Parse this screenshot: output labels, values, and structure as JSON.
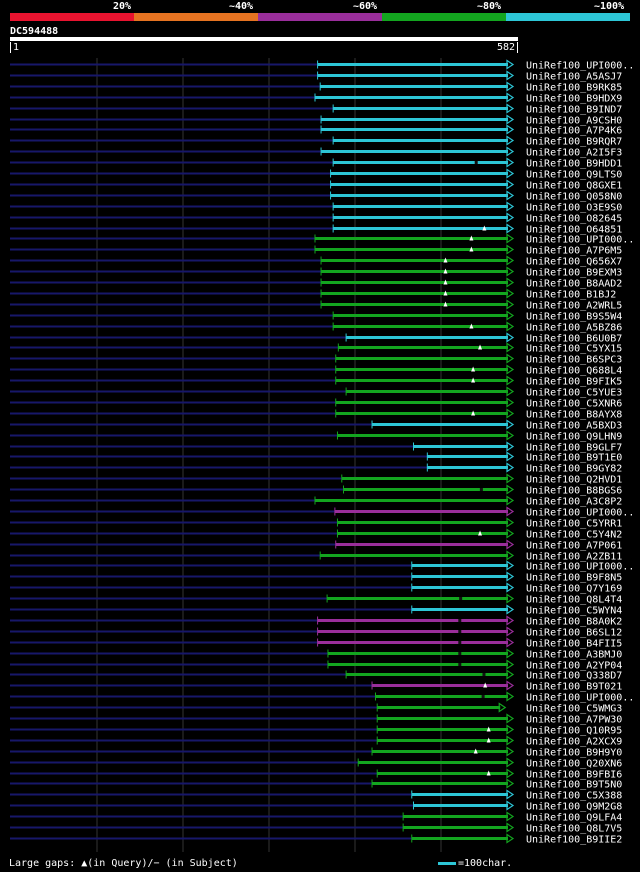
{
  "legend": {
    "colors": [
      "#e8132f",
      "#e57321",
      "#9a2e9b",
      "#13a51f",
      "#2dc6d6"
    ],
    "labels": [
      "20%",
      "~40%",
      "~60%",
      "~80%",
      "~100%"
    ]
  },
  "query": {
    "id": "DC594488",
    "start": "1",
    "end": "582"
  },
  "footer": {
    "gaps": "Large gaps: ▲(in Query)/− (in Subject)",
    "scale": "=100char."
  },
  "chart_data": {
    "type": "alignment",
    "query_length": 582,
    "hits": [
      {
        "label": "UniRef100_UPI000..",
        "start": 357,
        "end": 582,
        "identity": "~100%",
        "gap": null,
        "gap_type": null,
        "arrow": true
      },
      {
        "label": "UniRef100_A5ASJ7",
        "start": 357,
        "end": 582,
        "identity": "~100%",
        "gap": null,
        "gap_type": null,
        "arrow": true
      },
      {
        "label": "UniRef100_B9RK85",
        "start": 360,
        "end": 582,
        "identity": "~100%",
        "gap": null,
        "gap_type": null,
        "arrow": true
      },
      {
        "label": "UniRef100_B9HDX9",
        "start": 354,
        "end": 582,
        "identity": "~100%",
        "gap": null,
        "gap_type": null,
        "arrow": true
      },
      {
        "label": "UniRef100_B9IND7",
        "start": 375,
        "end": 582,
        "identity": "~100%",
        "gap": null,
        "gap_type": null,
        "arrow": true
      },
      {
        "label": "UniRef100_A9CSH0",
        "start": 361,
        "end": 582,
        "identity": "~100%",
        "gap": null,
        "gap_type": null,
        "arrow": true
      },
      {
        "label": "UniRef100_A7P4K6",
        "start": 361,
        "end": 582,
        "identity": "~100%",
        "gap": null,
        "gap_type": null,
        "arrow": true
      },
      {
        "label": "UniRef100_B9RQR7",
        "start": 375,
        "end": 582,
        "identity": "~100%",
        "gap": null,
        "gap_type": null,
        "arrow": true
      },
      {
        "label": "UniRef100_A2I5F3",
        "start": 361,
        "end": 582,
        "identity": "~100%",
        "gap": null,
        "gap_type": null,
        "arrow": true
      },
      {
        "label": "UniRef100_B9HDD1",
        "start": 375,
        "end": 582,
        "identity": "~100%",
        "gap": 540,
        "gap_type": "subject",
        "arrow": true
      },
      {
        "label": "UniRef100_Q9LTS0",
        "start": 372,
        "end": 582,
        "identity": "~100%",
        "gap": null,
        "gap_type": null,
        "arrow": true
      },
      {
        "label": "UniRef100_Q8GXE1",
        "start": 372,
        "end": 582,
        "identity": "~100%",
        "gap": null,
        "gap_type": null,
        "arrow": true
      },
      {
        "label": "UniRef100_Q058N0",
        "start": 372,
        "end": 582,
        "identity": "~100%",
        "gap": null,
        "gap_type": null,
        "arrow": true
      },
      {
        "label": "UniRef100_O3E9S0",
        "start": 375,
        "end": 582,
        "identity": "~100%",
        "gap": null,
        "gap_type": null,
        "arrow": true
      },
      {
        "label": "UniRef100_O82645",
        "start": 375,
        "end": 582,
        "identity": "~100%",
        "gap": null,
        "gap_type": null,
        "arrow": true
      },
      {
        "label": "UniRef100_O64851",
        "start": 375,
        "end": 582,
        "identity": "~100%",
        "gap": 550,
        "gap_type": "query",
        "arrow": true
      },
      {
        "label": "UniRef100_UPI000..",
        "start": 354,
        "end": 582,
        "identity": "~80%",
        "gap": 535,
        "gap_type": "query",
        "arrow": true
      },
      {
        "label": "UniRef100_A7P6M5",
        "start": 354,
        "end": 582,
        "identity": "~80%",
        "gap": 535,
        "gap_type": "query",
        "arrow": true
      },
      {
        "label": "UniRef100_Q656X7",
        "start": 361,
        "end": 582,
        "identity": "~80%",
        "gap": 505,
        "gap_type": "query",
        "arrow": true
      },
      {
        "label": "UniRef100_B9EXM3",
        "start": 361,
        "end": 582,
        "identity": "~80%",
        "gap": 505,
        "gap_type": "query",
        "arrow": true
      },
      {
        "label": "UniRef100_B8AAD2",
        "start": 361,
        "end": 582,
        "identity": "~80%",
        "gap": 505,
        "gap_type": "query",
        "arrow": true
      },
      {
        "label": "UniRef100_B1BJ2",
        "start": 361,
        "end": 582,
        "identity": "~80%",
        "gap": 505,
        "gap_type": "query",
        "arrow": true
      },
      {
        "label": "UniRef100_A2WRL5",
        "start": 361,
        "end": 582,
        "identity": "~80%",
        "gap": 505,
        "gap_type": "query",
        "arrow": true
      },
      {
        "label": "UniRef100_B9S5W4",
        "start": 375,
        "end": 582,
        "identity": "~80%",
        "gap": null,
        "gap_type": null,
        "arrow": true
      },
      {
        "label": "UniRef100_A5BZ86",
        "start": 375,
        "end": 582,
        "identity": "~80%",
        "gap": 535,
        "gap_type": "query",
        "arrow": true
      },
      {
        "label": "UniRef100_B6U0B7",
        "start": 390,
        "end": 582,
        "identity": "~100%",
        "gap": null,
        "gap_type": null,
        "arrow": true
      },
      {
        "label": "UniRef100_C5YX15",
        "start": 381,
        "end": 582,
        "identity": "~80%",
        "gap": 545,
        "gap_type": "query",
        "arrow": true
      },
      {
        "label": "UniRef100_B6SPC3",
        "start": 378,
        "end": 582,
        "identity": "~80%",
        "gap": null,
        "gap_type": null,
        "arrow": true
      },
      {
        "label": "UniRef100_Q688L4",
        "start": 378,
        "end": 582,
        "identity": "~80%",
        "gap": 537,
        "gap_type": "query",
        "arrow": true
      },
      {
        "label": "UniRef100_B9FIK5",
        "start": 378,
        "end": 582,
        "identity": "~80%",
        "gap": 537,
        "gap_type": "query",
        "arrow": true
      },
      {
        "label": "UniRef100_C5YUE3",
        "start": 390,
        "end": 582,
        "identity": "~80%",
        "gap": null,
        "gap_type": null,
        "arrow": true
      },
      {
        "label": "UniRef100_C5XNR6",
        "start": 378,
        "end": 582,
        "identity": "~80%",
        "gap": null,
        "gap_type": null,
        "arrow": true
      },
      {
        "label": "UniRef100_B8AYX8",
        "start": 378,
        "end": 582,
        "identity": "~80%",
        "gap": 537,
        "gap_type": "query",
        "arrow": true
      },
      {
        "label": "UniRef100_A5BXD3",
        "start": 420,
        "end": 582,
        "identity": "~100%",
        "gap": null,
        "gap_type": null,
        "arrow": true
      },
      {
        "label": "UniRef100_Q9LHN9",
        "start": 380,
        "end": 582,
        "identity": "~80%",
        "gap": null,
        "gap_type": null,
        "arrow": true
      },
      {
        "label": "UniRef100_B9GLF7",
        "start": 468,
        "end": 582,
        "identity": "~100%",
        "gap": null,
        "gap_type": null,
        "arrow": true
      },
      {
        "label": "UniRef100_B9T1E0",
        "start": 484,
        "end": 582,
        "identity": "~100%",
        "gap": null,
        "gap_type": null,
        "arrow": true
      },
      {
        "label": "UniRef100_B9GY82",
        "start": 484,
        "end": 582,
        "identity": "~100%",
        "gap": null,
        "gap_type": null,
        "arrow": true
      },
      {
        "label": "UniRef100_Q2HVD1",
        "start": 385,
        "end": 582,
        "identity": "~80%",
        "gap": null,
        "gap_type": null,
        "arrow": true
      },
      {
        "label": "UniRef100_B8BGS6",
        "start": 387,
        "end": 582,
        "identity": "~80%",
        "gap": 546,
        "gap_type": "subject",
        "arrow": true
      },
      {
        "label": "UniRef100_A3C8P2",
        "start": 354,
        "end": 582,
        "identity": "~80%",
        "gap": null,
        "gap_type": null,
        "arrow": true
      },
      {
        "label": "UniRef100_UPI000..",
        "start": 377,
        "end": 582,
        "identity": "~60%",
        "gap": null,
        "gap_type": null,
        "arrow": true
      },
      {
        "label": "UniRef100_C5YRR1",
        "start": 380,
        "end": 582,
        "identity": "~80%",
        "gap": null,
        "gap_type": null,
        "arrow": true
      },
      {
        "label": "UniRef100_C5Y4N2",
        "start": 380,
        "end": 582,
        "identity": "~80%",
        "gap": 545,
        "gap_type": "query",
        "arrow": true
      },
      {
        "label": "UniRef100_A7P061",
        "start": 378,
        "end": 582,
        "identity": "~60%",
        "gap": null,
        "gap_type": null,
        "arrow": true
      },
      {
        "label": "UniRef100_A2ZB11",
        "start": 360,
        "end": 582,
        "identity": "~80%",
        "gap": null,
        "gap_type": null,
        "arrow": true
      },
      {
        "label": "UniRef100_UPI000..",
        "start": 466,
        "end": 582,
        "identity": "~100%",
        "gap": null,
        "gap_type": null,
        "arrow": true
      },
      {
        "label": "UniRef100_B9F8N5",
        "start": 466,
        "end": 582,
        "identity": "~100%",
        "gap": null,
        "gap_type": null,
        "arrow": true
      },
      {
        "label": "UniRef100_Q7Y169",
        "start": 466,
        "end": 582,
        "identity": "~100%",
        "gap": null,
        "gap_type": null,
        "arrow": true
      },
      {
        "label": "UniRef100_Q8L4T4",
        "start": 368,
        "end": 582,
        "identity": "~80%",
        "gap": 522,
        "gap_type": "subject",
        "arrow": true
      },
      {
        "label": "UniRef100_C5WYN4",
        "start": 466,
        "end": 582,
        "identity": "~100%",
        "gap": null,
        "gap_type": null,
        "arrow": true
      },
      {
        "label": "UniRef100_B8A0K2",
        "start": 357,
        "end": 582,
        "identity": "~60%",
        "gap": 521,
        "gap_type": "subject",
        "arrow": true
      },
      {
        "label": "UniRef100_B6SL12",
        "start": 357,
        "end": 582,
        "identity": "~60%",
        "gap": 521,
        "gap_type": "subject",
        "arrow": true
      },
      {
        "label": "UniRef100_B4FII5",
        "start": 357,
        "end": 582,
        "identity": "~60%",
        "gap": 521,
        "gap_type": "subject",
        "arrow": true
      },
      {
        "label": "UniRef100_A3BMJ0",
        "start": 369,
        "end": 582,
        "identity": "~80%",
        "gap": 521,
        "gap_type": "subject",
        "arrow": true
      },
      {
        "label": "UniRef100_A2YP04",
        "start": 369,
        "end": 582,
        "identity": "~80%",
        "gap": 521,
        "gap_type": "subject",
        "arrow": true
      },
      {
        "label": "UniRef100_Q338D7",
        "start": 390,
        "end": 582,
        "identity": "~80%",
        "gap": 549,
        "gap_type": "subject",
        "arrow": true
      },
      {
        "label": "UniRef100_B9T021",
        "start": 420,
        "end": 582,
        "identity": "~60%",
        "gap": 551,
        "gap_type": "query",
        "arrow": true
      },
      {
        "label": "UniRef100_UPI000..",
        "start": 424,
        "end": 582,
        "identity": "~80%",
        "gap": 548,
        "gap_type": "subject",
        "arrow": true
      },
      {
        "label": "UniRef100_C5WMG3",
        "start": 426,
        "end": 573,
        "identity": "~80%",
        "gap": null,
        "gap_type": null,
        "arrow": true
      },
      {
        "label": "UniRef100_A7PW30",
        "start": 426,
        "end": 582,
        "identity": "~80%",
        "gap": null,
        "gap_type": null,
        "arrow": true
      },
      {
        "label": "UniRef100_Q10R95",
        "start": 426,
        "end": 582,
        "identity": "~80%",
        "gap": 555,
        "gap_type": "query",
        "arrow": true
      },
      {
        "label": "UniRef100_A2XCX9",
        "start": 426,
        "end": 582,
        "identity": "~80%",
        "gap": 555,
        "gap_type": "query",
        "arrow": true
      },
      {
        "label": "UniRef100_B9H9Y0",
        "start": 420,
        "end": 582,
        "identity": "~80%",
        "gap": 540,
        "gap_type": "query",
        "arrow": true
      },
      {
        "label": "UniRef100_Q20XN6",
        "start": 404,
        "end": 582,
        "identity": "~80%",
        "gap": null,
        "gap_type": null,
        "arrow": true
      },
      {
        "label": "UniRef100_B9FBI6",
        "start": 426,
        "end": 582,
        "identity": "~80%",
        "gap": 555,
        "gap_type": "query",
        "arrow": true
      },
      {
        "label": "UniRef100_B9T5N0",
        "start": 420,
        "end": 582,
        "identity": "~80%",
        "gap": null,
        "gap_type": null,
        "arrow": true
      },
      {
        "label": "UniRef100_C5X388",
        "start": 466,
        "end": 582,
        "identity": "~100%",
        "gap": null,
        "gap_type": null,
        "arrow": true
      },
      {
        "label": "UniRef100_Q9M2G8",
        "start": 468,
        "end": 582,
        "identity": "~100%",
        "gap": null,
        "gap_type": null,
        "arrow": true
      },
      {
        "label": "UniRef100_Q9LFA4",
        "start": 456,
        "end": 582,
        "identity": "~80%",
        "gap": null,
        "gap_type": null,
        "arrow": true
      },
      {
        "label": "UniRef100_Q8L7V5",
        "start": 456,
        "end": 582,
        "identity": "~80%",
        "gap": null,
        "gap_type": null,
        "arrow": true
      },
      {
        "label": "UniRef100_B9IIE2",
        "start": 466,
        "end": 582,
        "identity": "~80%",
        "gap": null,
        "gap_type": null,
        "arrow": true
      }
    ]
  }
}
